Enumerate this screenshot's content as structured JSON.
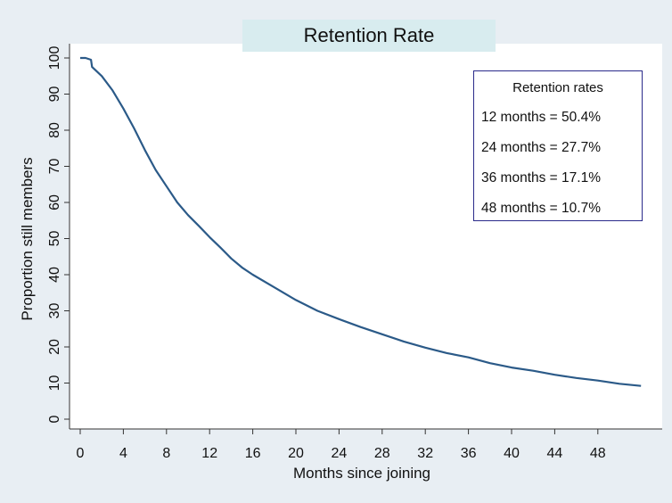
{
  "chart_data": {
    "type": "line",
    "title": "Retention Rate",
    "xlabel": "Months since joining",
    "ylabel": "Proportion still members",
    "xlim": [
      0,
      52
    ],
    "ylim": [
      0,
      100
    ],
    "xticks": [
      0,
      4,
      8,
      12,
      16,
      20,
      24,
      28,
      32,
      36,
      40,
      44,
      48
    ],
    "yticks": [
      0,
      10,
      20,
      30,
      40,
      50,
      60,
      70,
      80,
      90,
      100
    ],
    "grid": false,
    "legend_position": "top-right",
    "legend": {
      "title": "Retention rates",
      "lines": [
        "12 months = 50.4%",
        "24 months = 27.7%",
        "36 months = 17.1%",
        "48 months = 10.7%"
      ]
    },
    "series": [
      {
        "color": "#2b5a88",
        "x": [
          0,
          0.5,
          1.0,
          1.1,
          2,
          3,
          4,
          5,
          6,
          7,
          8,
          9,
          10,
          11,
          12,
          13,
          14,
          15,
          16,
          18,
          20,
          22,
          24,
          26,
          28,
          30,
          32,
          34,
          36,
          38,
          40,
          42,
          44,
          46,
          48,
          50,
          52
        ],
        "y": [
          100,
          100,
          99.5,
          97.5,
          95,
          91,
          86,
          80.5,
          74.5,
          69,
          64.5,
          60,
          56.5,
          53.5,
          50.4,
          47.5,
          44.5,
          42,
          40,
          36.5,
          33,
          30,
          27.7,
          25.5,
          23.5,
          21.5,
          19.8,
          18.3,
          17.1,
          15.5,
          14.3,
          13.4,
          12.3,
          11.4,
          10.7,
          9.8,
          9.2
        ]
      }
    ]
  }
}
